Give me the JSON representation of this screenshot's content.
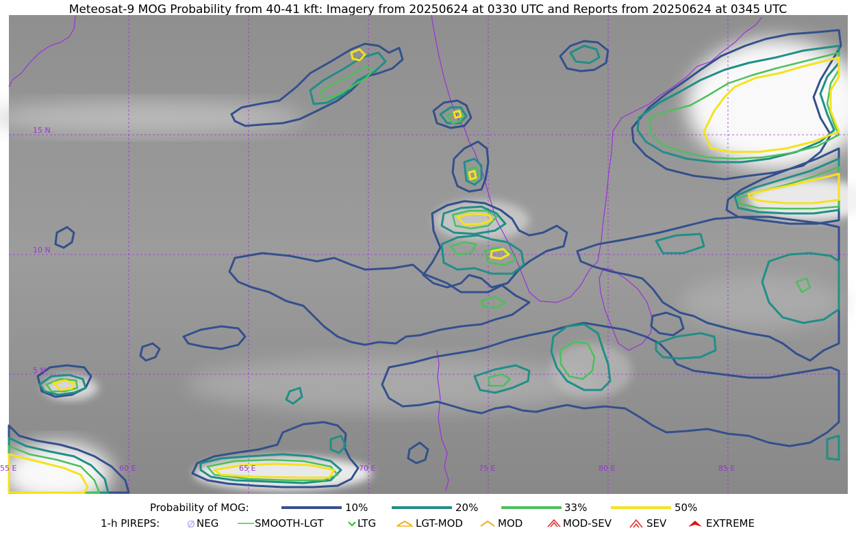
{
  "title": "Meteosat-9 MOG Probability from 40-41 kft: Imagery from 20250624 at 0330 UTC and Reports from 20250624 at 0345 UTC",
  "map": {
    "lat_labels": [
      "15 N",
      "10 N",
      "5 N"
    ],
    "lon_labels": [
      "55 E",
      "60 E",
      "65 E",
      "70 E",
      "75 E",
      "80 E",
      "85 E"
    ],
    "colors": {
      "grid": "#9b30d9",
      "coast": "#9b30d9",
      "p10": "#33508c",
      "p20": "#1f8f86",
      "p33": "#4bc05a",
      "p50": "#f5e21e"
    }
  },
  "legend": {
    "probability": {
      "label": "Probability of MOG:",
      "items": [
        {
          "label": "10%",
          "color": "#33508c"
        },
        {
          "label": "20%",
          "color": "#1f8f86"
        },
        {
          "label": "33%",
          "color": "#4bc05a"
        },
        {
          "label": "50%",
          "color": "#f5e21e"
        }
      ]
    },
    "pireps": {
      "label": "1-h PIREPS:",
      "items": [
        {
          "label": "NEG",
          "icon": "neg-icon",
          "color": "#b8b8f0"
        },
        {
          "label": "SMOOTH-LGT",
          "icon": "smooth-lgt-icon",
          "color": "#3ccf3c"
        },
        {
          "label": "LTG",
          "icon": "ltg-icon",
          "color": "#18c818"
        },
        {
          "label": "LGT-MOD",
          "icon": "lgt-mod-icon",
          "color": "#f0b020"
        },
        {
          "label": "MOD",
          "icon": "mod-icon",
          "color": "#f0b020"
        },
        {
          "label": "MOD-SEV",
          "icon": "mod-sev-icon",
          "color": "#e83030"
        },
        {
          "label": "SEV",
          "icon": "sev-icon",
          "color": "#e83030"
        },
        {
          "label": "EXTREME",
          "icon": "extreme-icon",
          "color": "#e01010"
        }
      ]
    }
  }
}
